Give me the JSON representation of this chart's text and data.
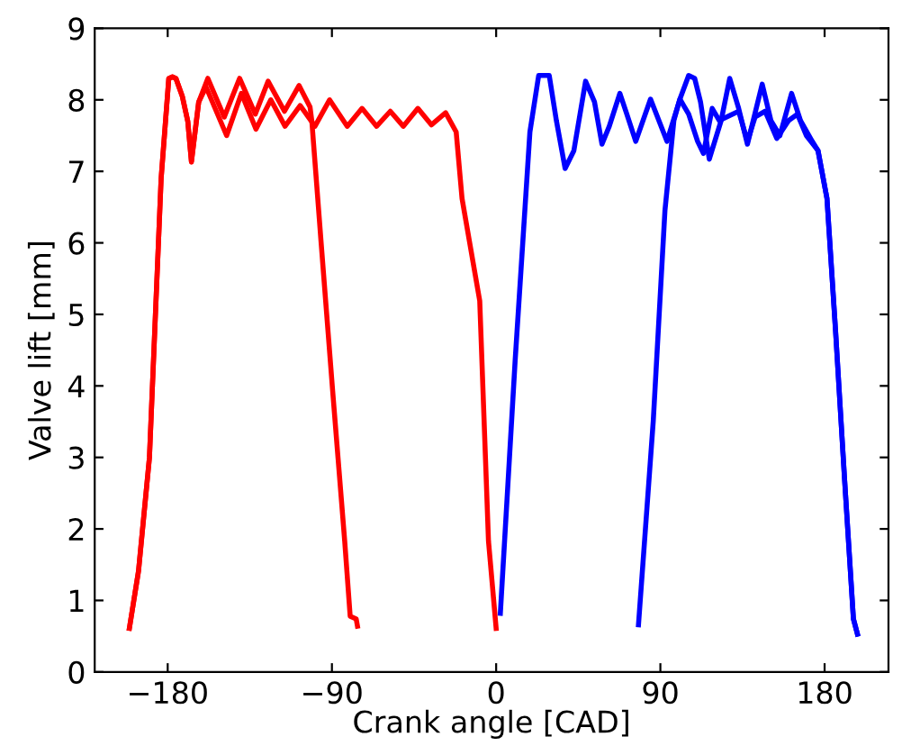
{
  "chart_data": {
    "type": "line",
    "xlabel": "Crank angle [CAD]",
    "ylabel": "Valve lift [mm]",
    "xlim": [
      -220,
      215
    ],
    "ylim": [
      0,
      9
    ],
    "xticks": [
      {
        "value": -180,
        "label": "−180"
      },
      {
        "value": -90,
        "label": "−90"
      },
      0,
      90,
      180
    ],
    "yticks": [
      0,
      1,
      2,
      3,
      4,
      5,
      6,
      7,
      8,
      9
    ],
    "grid": false,
    "legend": false,
    "marker": "none",
    "line_style": "solid",
    "series": [
      {
        "color": "#ff0000",
        "x": [
          -201,
          -196,
          -190,
          -183.6,
          -179.4,
          -177.4,
          -175.5,
          -172,
          -169,
          -167,
          -163,
          -159,
          -147.7,
          -139.6,
          -131.6,
          -123.5,
          -115.7,
          -107.4,
          -99.3,
          -91.3,
          -81.6,
          -73.5,
          -65.5,
          -58,
          -50.9,
          -42.9,
          -35.5,
          -27.7,
          -21.9,
          -18.7,
          -9,
          -4.2,
          0
        ],
        "values": [
          0.61,
          1.41,
          3.0,
          6.9,
          8.3,
          8.32,
          8.3,
          8.05,
          7.7,
          7.14,
          7.97,
          8.18,
          7.5,
          8.09,
          7.59,
          8.0,
          7.63,
          7.92,
          7.63,
          8.0,
          7.63,
          7.88,
          7.63,
          7.84,
          7.63,
          7.88,
          7.65,
          7.82,
          7.55,
          6.62,
          5.19,
          1.83,
          0.61
        ]
      },
      {
        "color": "#ff0000",
        "x": [
          -201,
          -196,
          -190,
          -183.6,
          -179.4,
          -177.4,
          -175.5,
          -172,
          -169,
          -167,
          -163,
          -158,
          -149,
          -140.6,
          -132,
          -125,
          -116,
          -108,
          -102,
          -101,
          -96,
          -89.6,
          -83,
          -80,
          -76.7,
          -76
        ],
        "values": [
          0.61,
          1.41,
          3.0,
          6.9,
          8.3,
          8.32,
          8.3,
          8.05,
          7.7,
          7.13,
          7.97,
          8.3,
          7.76,
          8.3,
          7.8,
          8.26,
          7.84,
          8.2,
          7.9,
          7.7,
          6.03,
          3.93,
          1.83,
          0.78,
          0.74,
          0.64
        ]
      },
      {
        "color": "#0000ff",
        "x": [
          2.3,
          10.4,
          18.5,
          23.3,
          29.1,
          33,
          37.8,
          42.6,
          49,
          53.9,
          58,
          62,
          67.8,
          71.6,
          76.5,
          84.6,
          93.6,
          100.7,
          105.5,
          108.8,
          112,
          116.8,
          123.3,
          128,
          132.9,
          137.7,
          145.8,
          150.6,
          155.5,
          161.9,
          166.8,
          173.2,
          176.4,
          181.3,
          186,
          191,
          195.8,
          198
        ],
        "values": [
          0.82,
          4.35,
          7.55,
          8.34,
          8.34,
          7.71,
          7.04,
          7.29,
          8.26,
          7.97,
          7.38,
          7.63,
          8.09,
          7.8,
          7.42,
          8.01,
          7.42,
          8.01,
          8.34,
          8.3,
          7.97,
          7.17,
          7.71,
          8.3,
          7.88,
          7.38,
          8.22,
          7.71,
          7.5,
          8.09,
          7.71,
          7.42,
          7.29,
          6.62,
          4.77,
          2.67,
          0.74,
          0.53
        ]
      },
      {
        "color": "#0000ff",
        "x": [
          78,
          86.1,
          92.5,
          97.4,
          100.7,
          105.5,
          110.4,
          113.6,
          118.4,
          122.3,
          132.9,
          137.7,
          141.9,
          147.4,
          153.8,
          160.3,
          165.1,
          170,
          176.4,
          181.3,
          186,
          191,
          195.8,
          198
        ],
        "values": [
          0.66,
          3.51,
          6.45,
          7.71,
          8.01,
          7.8,
          7.42,
          7.25,
          7.88,
          7.71,
          7.84,
          7.42,
          7.76,
          7.84,
          7.46,
          7.71,
          7.8,
          7.5,
          7.29,
          6.62,
          4.77,
          2.67,
          0.74,
          0.53
        ]
      }
    ]
  }
}
